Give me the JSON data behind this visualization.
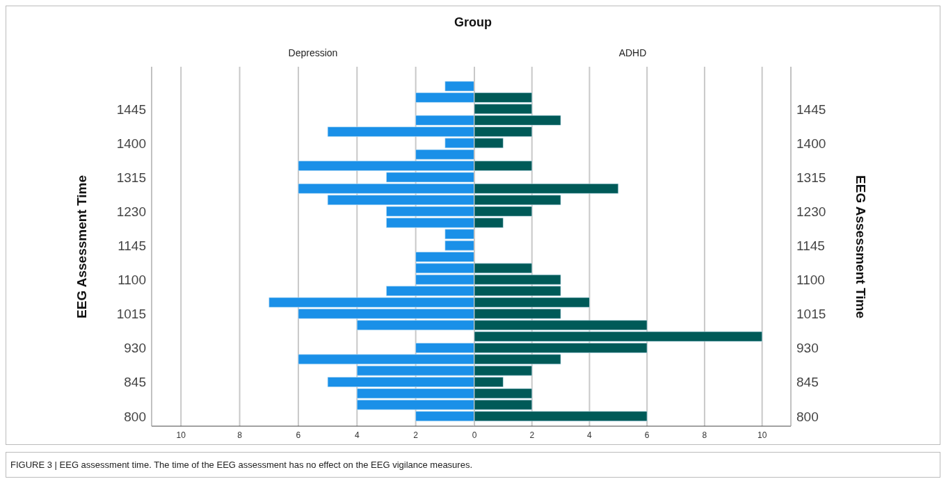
{
  "chart_data": [
    {
      "type": "bar",
      "orientation": "horizontal",
      "title": "Depression",
      "ylabel": "EEG Assessment Time",
      "annotations": [
        "Group",
        "FIGURE 3 | EEG assessment time. The time of the EEG assessment has no effect on the EEG vigilance measures."
      ],
      "categories": [
        null,
        null,
        "1445",
        null,
        null,
        "1400",
        null,
        null,
        "1315",
        null,
        null,
        "1230",
        null,
        null,
        "1145",
        null,
        null,
        "1100",
        null,
        null,
        "1015",
        null,
        null,
        "930",
        null,
        null,
        "845",
        null,
        null,
        "800"
      ],
      "values": [
        1,
        2,
        0,
        2,
        5,
        1,
        2,
        6,
        3,
        6,
        5,
        3,
        3,
        1,
        1,
        2,
        2,
        2,
        3,
        7,
        6,
        4,
        0,
        2,
        6,
        4,
        5,
        4,
        4,
        2
      ],
      "color": "#1a90e8",
      "xlim": [
        11,
        0
      ],
      "xticks": [
        2,
        4,
        6,
        8,
        10
      ],
      "grid": "x"
    },
    {
      "type": "bar",
      "orientation": "horizontal",
      "title": "ADHD",
      "y2label": "EEG Assessment Time",
      "categories": [
        null,
        null,
        "1445",
        null,
        null,
        "1400",
        null,
        null,
        "1315",
        null,
        null,
        "1230",
        null,
        null,
        "1145",
        null,
        null,
        "1100",
        null,
        null,
        "1015",
        null,
        null,
        "930",
        null,
        null,
        "845",
        null,
        null,
        "800"
      ],
      "values": [
        0,
        2,
        2,
        3,
        2,
        1,
        0,
        2,
        0,
        5,
        3,
        2,
        1,
        0,
        0,
        0,
        2,
        3,
        3,
        4,
        3,
        6,
        10,
        6,
        3,
        2,
        1,
        2,
        2,
        6
      ],
      "color": "#005a58",
      "xlim": [
        0,
        11
      ],
      "xticks": [
        0,
        2,
        4,
        6,
        8,
        10
      ],
      "grid": "x"
    }
  ]
}
